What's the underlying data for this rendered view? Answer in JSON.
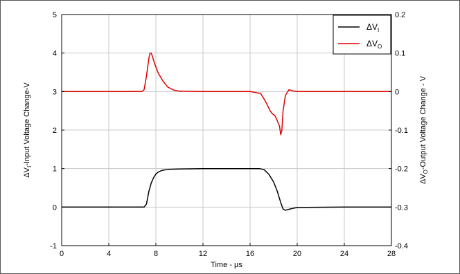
{
  "chart_data": {
    "type": "line",
    "title": "",
    "xlabel": "Time - µs",
    "ylabel_left": {
      "delta": "ΔV",
      "sub": "I",
      "rest": "-Input Voltage Change-V"
    },
    "ylabel_right": {
      "delta": "ΔV",
      "sub": "O",
      "rest": "-Output Voltage Change - V"
    },
    "xlim": [
      0,
      28
    ],
    "ylim_left": [
      -1,
      5
    ],
    "ylim_right": [
      -0.4,
      0.2
    ],
    "x_ticks": [
      0,
      4,
      8,
      12,
      16,
      20,
      24,
      28
    ],
    "y_ticks_left": [
      -1,
      0,
      1,
      2,
      3,
      4,
      5
    ],
    "y_ticks_right": [
      "-0.4",
      "-0.3",
      "-0.2",
      "-0.1",
      "0",
      "0.1",
      "0.2"
    ],
    "grid": true,
    "legend_position": "top-right",
    "series": [
      {
        "name": "ΔV",
        "name_sub": "I",
        "axis": "left",
        "color": "#000000",
        "x": [
          0,
          7.0,
          7.2,
          7.4,
          7.6,
          7.8,
          8.0,
          8.2,
          8.5,
          9.0,
          10.0,
          12.0,
          14.0,
          16.0,
          16.8,
          17.2,
          17.6,
          18.0,
          18.3,
          18.6,
          18.8,
          19.0,
          19.5,
          20.0,
          24.0,
          28.0
        ],
        "values": [
          0,
          0.0,
          0.08,
          0.4,
          0.62,
          0.76,
          0.86,
          0.91,
          0.95,
          0.98,
          0.99,
          1.0,
          1.0,
          1.0,
          1.0,
          0.97,
          0.85,
          0.65,
          0.42,
          0.12,
          -0.05,
          -0.08,
          -0.04,
          -0.01,
          0.0,
          0.0
        ]
      },
      {
        "name": "ΔV",
        "name_sub": "O",
        "axis": "right",
        "color": "#e00000",
        "x": [
          0,
          6.8,
          7.0,
          7.2,
          7.4,
          7.5,
          7.6,
          7.7,
          7.9,
          8.2,
          8.6,
          9.0,
          9.5,
          10.0,
          12.0,
          16.0,
          16.9,
          17.3,
          17.7,
          17.9,
          18.1,
          18.3,
          18.5,
          18.6,
          18.7,
          18.8,
          19.0,
          19.3,
          19.6,
          20.0,
          24.0,
          28.0
        ],
        "values": [
          0,
          0.0,
          0.005,
          0.04,
          0.085,
          0.1,
          0.1,
          0.092,
          0.072,
          0.048,
          0.027,
          0.012,
          0.004,
          0.001,
          0.0,
          0.0,
          -0.005,
          -0.025,
          -0.05,
          -0.058,
          -0.062,
          -0.075,
          -0.09,
          -0.112,
          -0.1,
          -0.05,
          -0.01,
          0.005,
          0.002,
          0.0,
          0.0,
          0.0
        ]
      }
    ]
  }
}
